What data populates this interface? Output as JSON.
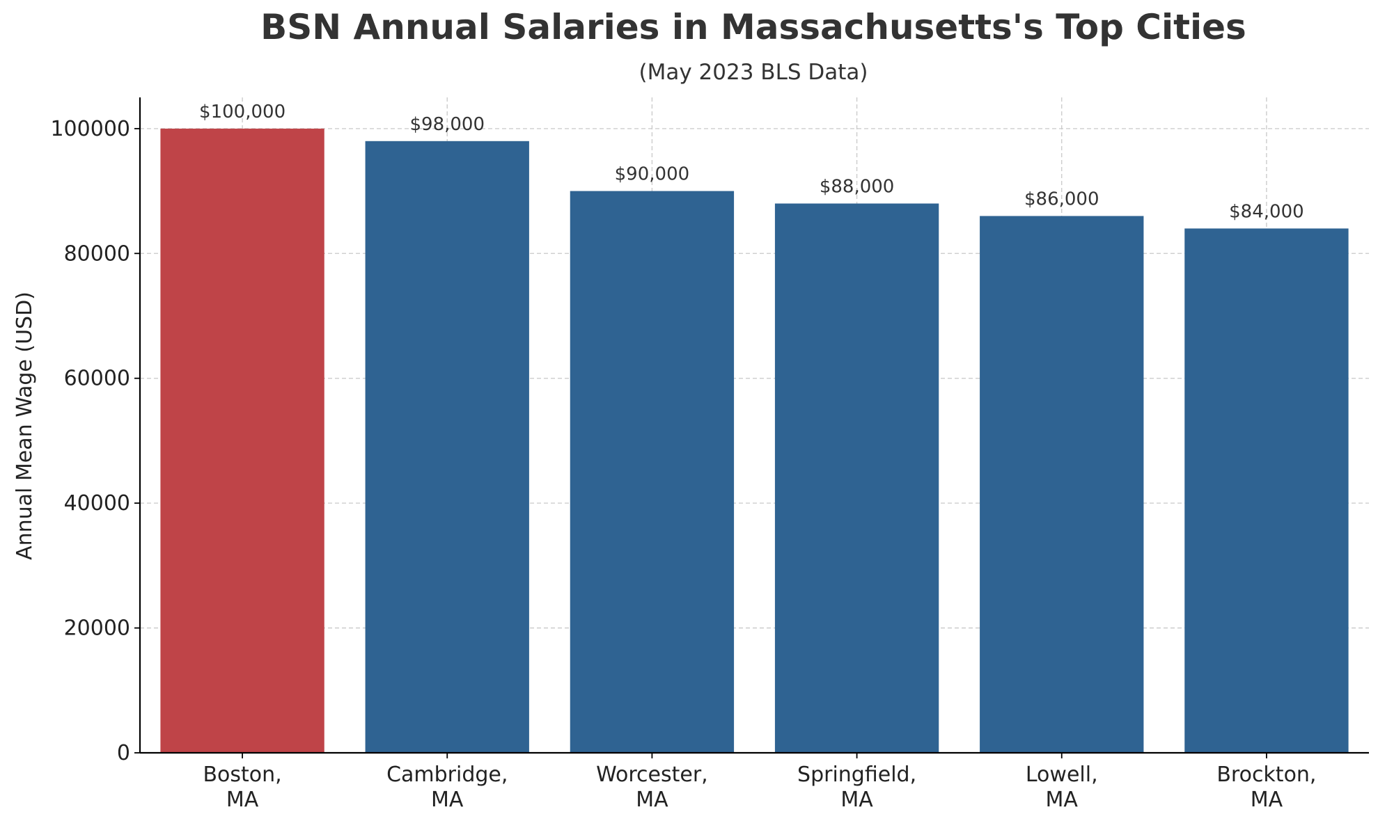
{
  "colors": {
    "highlight": "#bf4448",
    "default": "#2f6392"
  },
  "chart_data": {
    "type": "bar",
    "title": "BSN Annual Salaries in Massachusetts's Top Cities",
    "subtitle": "(May 2023 BLS Data)",
    "xlabel": "",
    "ylabel": "Annual Mean Wage (USD)",
    "ylim": [
      0,
      105000
    ],
    "yticks": [
      0,
      20000,
      40000,
      60000,
      80000,
      100000
    ],
    "grid": true,
    "categories": [
      [
        "Boston,",
        "MA"
      ],
      [
        "Cambridge,",
        "MA"
      ],
      [
        "Worcester,",
        "MA"
      ],
      [
        "Springfield,",
        "MA"
      ],
      [
        "Lowell,",
        "MA"
      ],
      [
        "Brockton,",
        "MA"
      ]
    ],
    "values": [
      100000,
      98000,
      90000,
      88000,
      86000,
      84000
    ],
    "data_labels": [
      "$100,000",
      "$98,000",
      "$90,000",
      "$88,000",
      "$86,000",
      "$84,000"
    ],
    "highlighted_index": 0
  }
}
